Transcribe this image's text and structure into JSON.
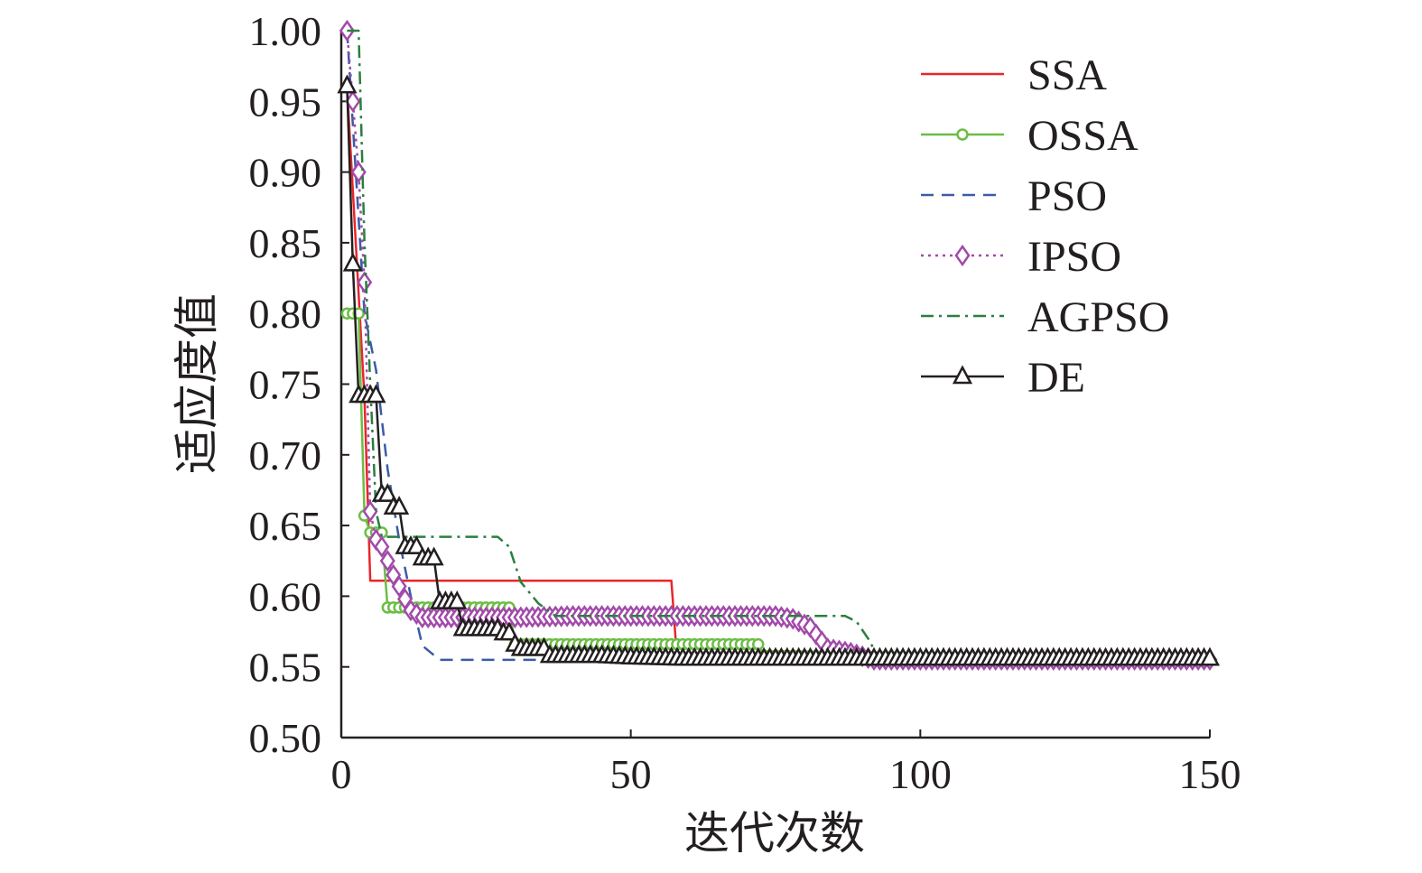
{
  "chart_data": {
    "type": "line",
    "xlabel": "迭代次数",
    "ylabel": "适应度值",
    "xlim": [
      0,
      150
    ],
    "ylim": [
      0.5,
      1.0
    ],
    "x_ticks": [
      "0",
      "50",
      "100",
      "150"
    ],
    "x_tick_values": [
      0,
      50,
      100,
      150
    ],
    "y_ticks": [
      "0.50",
      "0.55",
      "0.60",
      "0.65",
      "0.70",
      "0.75",
      "0.80",
      "0.85",
      "0.90",
      "0.95",
      "1.00"
    ],
    "y_tick_values": [
      0.5,
      0.55,
      0.6,
      0.65,
      0.7,
      0.75,
      0.8,
      0.85,
      0.9,
      0.95,
      1.0
    ],
    "grid": false,
    "legend_position": "top-right",
    "series": [
      {
        "name": "SSA",
        "color": "#e8262c",
        "style": "solid",
        "marker": "none",
        "x": [
          1,
          4,
          5,
          57,
          58,
          150
        ],
        "y": [
          0.96,
          0.74,
          0.611,
          0.611,
          0.555,
          0.555
        ]
      },
      {
        "name": "OSSA",
        "color": "#6cbd45",
        "style": "solid",
        "marker": "circle",
        "x": [
          1,
          3,
          4,
          5,
          7,
          8,
          29,
          30,
          31,
          72,
          73,
          150
        ],
        "y": [
          0.8,
          0.8,
          0.657,
          0.645,
          0.645,
          0.592,
          0.592,
          0.566,
          0.566,
          0.566,
          0.558,
          0.555
        ]
      },
      {
        "name": "PSO",
        "color": "#3b5ba5",
        "style": "dashed",
        "marker": "none",
        "x": [
          1,
          4,
          6,
          8,
          10,
          12,
          14,
          17,
          35,
          38,
          150
        ],
        "y": [
          1.0,
          0.8,
          0.76,
          0.69,
          0.64,
          0.6,
          0.565,
          0.555,
          0.555,
          0.555,
          0.555
        ]
      },
      {
        "name": "IPSO",
        "color": "#a24aaa",
        "style": "dotted",
        "marker": "diamond",
        "x": [
          1,
          3,
          4,
          5,
          6,
          7,
          8,
          9,
          10,
          11,
          12,
          14,
          20,
          30,
          40,
          60,
          75,
          78,
          81,
          84,
          88,
          92,
          100,
          150
        ],
        "y": [
          1.0,
          0.9,
          0.822,
          0.66,
          0.64,
          0.635,
          0.625,
          0.615,
          0.607,
          0.598,
          0.59,
          0.585,
          0.585,
          0.585,
          0.586,
          0.586,
          0.586,
          0.584,
          0.578,
          0.563,
          0.56,
          0.555,
          0.555,
          0.555
        ]
      },
      {
        "name": "AGPSO",
        "color": "#2a7f3e",
        "style": "dashdot",
        "marker": "none",
        "x": [
          1,
          3,
          4,
          5,
          6,
          7,
          9,
          27,
          29,
          31,
          34,
          37,
          40,
          87,
          89,
          91,
          93,
          150
        ],
        "y": [
          1.0,
          1.0,
          0.85,
          0.75,
          0.66,
          0.642,
          0.642,
          0.642,
          0.635,
          0.61,
          0.595,
          0.586,
          0.586,
          0.586,
          0.582,
          0.57,
          0.555,
          0.555
        ]
      },
      {
        "name": "DE",
        "color": "#231f20",
        "style": "solid",
        "marker": "triangle",
        "x": [
          1,
          2,
          3,
          4,
          5,
          6,
          7,
          8,
          9,
          10,
          11,
          12,
          13,
          14,
          15,
          16,
          17,
          18,
          19,
          20,
          21,
          22,
          23,
          24,
          25,
          26,
          27,
          28,
          29,
          30,
          31,
          32,
          33,
          34,
          35,
          36,
          37,
          40,
          45,
          50,
          60,
          70,
          80,
          90,
          100,
          110,
          120,
          130,
          140,
          150
        ],
        "y": [
          0.961,
          0.835,
          0.742,
          0.742,
          0.742,
          0.742,
          0.672,
          0.672,
          0.663,
          0.663,
          0.635,
          0.635,
          0.635,
          0.627,
          0.627,
          0.627,
          0.596,
          0.596,
          0.596,
          0.596,
          0.577,
          0.577,
          0.577,
          0.577,
          0.577,
          0.577,
          0.577,
          0.574,
          0.574,
          0.566,
          0.563,
          0.563,
          0.563,
          0.563,
          0.563,
          0.558,
          0.558,
          0.558,
          0.558,
          0.557,
          0.556,
          0.556,
          0.556,
          0.556,
          0.556,
          0.556,
          0.556,
          0.556,
          0.556,
          0.556
        ]
      }
    ]
  }
}
